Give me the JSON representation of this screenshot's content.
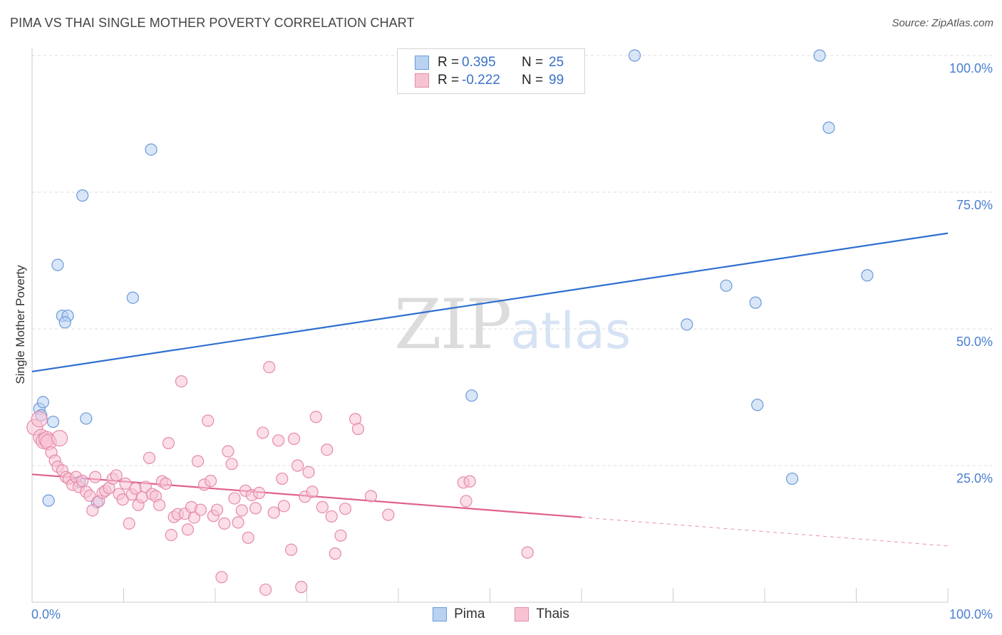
{
  "header": {
    "title": "PIMA VS THAI SINGLE MOTHER POVERTY CORRELATION CHART",
    "source": "Source: ZipAtlas.com"
  },
  "watermark": {
    "zip": "ZIP",
    "atlas": "atlas"
  },
  "legend": {
    "rows": [
      {
        "r_label": "R =",
        "r_value": "0.395",
        "n_label": "N =",
        "n_value": "25"
      },
      {
        "r_label": "R =",
        "r_value": "-0.222",
        "n_label": "N =",
        "n_value": "99"
      }
    ]
  },
  "bottom_legend": {
    "pima": "Pima",
    "thais": "Thais"
  },
  "colors": {
    "pima_fill": "#b9d2f2",
    "pima_stroke": "#6a9ad9",
    "pima_line": "#2f6fd0",
    "thais_fill": "#f7c3d3",
    "thais_stroke": "#e58aa8",
    "thais_line": "#e0608d",
    "grid": "#dddddd",
    "tick_text": "#4a7fd0"
  },
  "chart_data": {
    "type": "scatter",
    "title": "PIMA VS THAI SINGLE MOTHER POVERTY CORRELATION CHART",
    "xlabel": "",
    "ylabel": "Single Mother Poverty",
    "xlim": [
      0,
      100
    ],
    "ylim": [
      0,
      100
    ],
    "x_tick_labels": [
      "0.0%",
      "100.0%"
    ],
    "y_ticks": [
      25,
      50,
      75,
      100
    ],
    "y_tick_labels": [
      "25.0%",
      "50.0%",
      "75.0%",
      "100.0%"
    ],
    "grid": true,
    "legend_position": "top-center",
    "series": [
      {
        "name": "Pima",
        "r": 0.395,
        "n": 25,
        "trend": {
          "x": [
            0,
            100
          ],
          "y": [
            42.2,
            67.5
          ],
          "dashed_from": null
        },
        "points": [
          [
            0.8,
            35.4
          ],
          [
            1.2,
            36.6
          ],
          [
            1.8,
            18.6
          ],
          [
            2.3,
            33.0
          ],
          [
            2.8,
            61.7
          ],
          [
            3.3,
            52.4
          ],
          [
            3.9,
            52.4
          ],
          [
            5.2,
            22.0
          ],
          [
            5.5,
            74.4
          ],
          [
            5.9,
            33.6
          ],
          [
            7.1,
            18.3
          ],
          [
            11.0,
            55.7
          ],
          [
            13.0,
            82.8
          ],
          [
            48.0,
            37.8
          ],
          [
            65.8,
            100.0
          ],
          [
            71.5,
            50.8
          ],
          [
            75.8,
            57.9
          ],
          [
            79.0,
            54.8
          ],
          [
            79.2,
            36.1
          ],
          [
            83.0,
            22.6
          ],
          [
            86.0,
            100.0
          ],
          [
            87.0,
            86.8
          ],
          [
            91.2,
            59.8
          ],
          [
            1.0,
            34.2
          ],
          [
            3.6,
            51.2
          ]
        ]
      },
      {
        "name": "Thais",
        "r": -0.222,
        "n": 99,
        "trend": {
          "x": [
            0,
            100
          ],
          "y": [
            23.4,
            10.3
          ],
          "dashed_from": 60
        },
        "points": [
          [
            0.3,
            32.0
          ],
          [
            0.8,
            33.5
          ],
          [
            1.0,
            30.2
          ],
          [
            1.3,
            29.5
          ],
          [
            1.6,
            29.8
          ],
          [
            1.8,
            29.3
          ],
          [
            2.1,
            27.4
          ],
          [
            2.5,
            25.9
          ],
          [
            2.8,
            24.8
          ],
          [
            3.3,
            24.1
          ],
          [
            3.7,
            22.9
          ],
          [
            4.0,
            22.6
          ],
          [
            4.4,
            21.5
          ],
          [
            4.8,
            22.9
          ],
          [
            5.1,
            21.1
          ],
          [
            5.5,
            22.2
          ],
          [
            5.9,
            20.2
          ],
          [
            6.3,
            19.5
          ],
          [
            6.6,
            16.8
          ],
          [
            6.9,
            22.9
          ],
          [
            7.3,
            18.5
          ],
          [
            7.7,
            20.0
          ],
          [
            8.0,
            20.4
          ],
          [
            8.4,
            20.9
          ],
          [
            8.8,
            22.6
          ],
          [
            9.2,
            23.2
          ],
          [
            9.5,
            19.8
          ],
          [
            9.9,
            18.8
          ],
          [
            10.2,
            21.7
          ],
          [
            10.6,
            14.4
          ],
          [
            10.9,
            19.7
          ],
          [
            11.3,
            20.8
          ],
          [
            11.6,
            17.8
          ],
          [
            12.0,
            19.2
          ],
          [
            12.4,
            21.1
          ],
          [
            12.8,
            26.4
          ],
          [
            13.1,
            19.8
          ],
          [
            13.5,
            19.4
          ],
          [
            13.9,
            17.8
          ],
          [
            14.2,
            22.1
          ],
          [
            14.6,
            21.7
          ],
          [
            14.9,
            29.1
          ],
          [
            15.2,
            12.3
          ],
          [
            15.5,
            15.6
          ],
          [
            15.9,
            16.1
          ],
          [
            16.3,
            40.4
          ],
          [
            16.7,
            16.2
          ],
          [
            17.0,
            13.3
          ],
          [
            17.4,
            17.4
          ],
          [
            17.7,
            15.5
          ],
          [
            18.1,
            25.8
          ],
          [
            18.4,
            16.9
          ],
          [
            18.8,
            21.5
          ],
          [
            19.2,
            33.2
          ],
          [
            19.5,
            22.2
          ],
          [
            19.8,
            15.8
          ],
          [
            20.2,
            16.9
          ],
          [
            20.7,
            4.6
          ],
          [
            21.0,
            14.4
          ],
          [
            21.4,
            27.6
          ],
          [
            21.8,
            25.3
          ],
          [
            22.1,
            19.0
          ],
          [
            22.5,
            14.6
          ],
          [
            22.9,
            16.8
          ],
          [
            23.3,
            20.4
          ],
          [
            23.6,
            11.8
          ],
          [
            24.0,
            19.6
          ],
          [
            24.4,
            17.2
          ],
          [
            24.8,
            20.0
          ],
          [
            25.2,
            31.0
          ],
          [
            25.5,
            2.3
          ],
          [
            25.9,
            43.0
          ],
          [
            26.4,
            16.4
          ],
          [
            26.9,
            29.6
          ],
          [
            27.3,
            22.6
          ],
          [
            27.5,
            17.6
          ],
          [
            28.3,
            9.6
          ],
          [
            28.6,
            29.9
          ],
          [
            29.0,
            25.0
          ],
          [
            29.4,
            2.8
          ],
          [
            29.8,
            19.3
          ],
          [
            30.2,
            23.8
          ],
          [
            30.6,
            20.2
          ],
          [
            31.0,
            33.9
          ],
          [
            31.7,
            17.4
          ],
          [
            32.2,
            27.9
          ],
          [
            32.7,
            15.7
          ],
          [
            33.1,
            8.9
          ],
          [
            33.7,
            12.2
          ],
          [
            34.2,
            17.1
          ],
          [
            35.3,
            33.5
          ],
          [
            35.6,
            31.7
          ],
          [
            37.0,
            19.4
          ],
          [
            38.9,
            16.0
          ],
          [
            47.1,
            21.9
          ],
          [
            47.8,
            22.1
          ],
          [
            47.4,
            18.5
          ],
          [
            54.1,
            9.1
          ],
          [
            3.0,
            30.0
          ]
        ]
      }
    ]
  }
}
